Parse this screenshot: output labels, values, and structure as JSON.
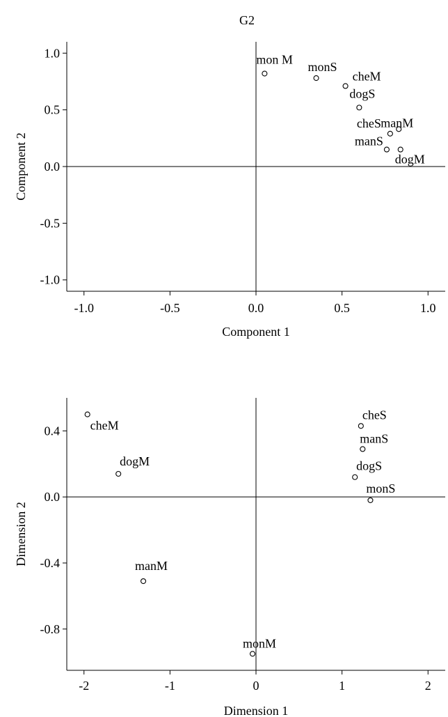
{
  "page_title": "G2",
  "chart_data": [
    {
      "type": "scatter",
      "title": "G2",
      "xlabel": "Component 1",
      "ylabel": "Component 2",
      "xlim": [
        -1.1,
        1.1
      ],
      "ylim": [
        -1.1,
        1.1
      ],
      "xticks": [
        "-1.0",
        "-0.5",
        "0.0",
        "0.5",
        "1.0"
      ],
      "yticks": [
        "-1.0",
        "-0.5",
        "0.0",
        "0.5",
        "1.0"
      ],
      "reference_lines": {
        "x": 0,
        "y": 0
      },
      "grid": false,
      "points": [
        {
          "label": "mon M",
          "x": 0.05,
          "y": 0.82
        },
        {
          "label": "monS",
          "x": 0.35,
          "y": 0.78
        },
        {
          "label": "cheM",
          "x": 0.52,
          "y": 0.71
        },
        {
          "label": "dogS",
          "x": 0.6,
          "y": 0.52
        },
        {
          "label": "cheS",
          "x": 0.78,
          "y": 0.29
        },
        {
          "label": "manM",
          "x": 0.83,
          "y": 0.33
        },
        {
          "label": "manS",
          "x": 0.76,
          "y": 0.15
        },
        {
          "label": "dogM",
          "x": 0.84,
          "y": 0.15
        }
      ]
    },
    {
      "type": "scatter",
      "title": "",
      "xlabel": "Dimension 1",
      "ylabel": "Dimension 2",
      "xlim": [
        -2.2,
        2.2
      ],
      "ylim": [
        -1.05,
        0.6
      ],
      "xticks": [
        "-2",
        "-1",
        "0",
        "1",
        "2"
      ],
      "yticks": [
        "-0.8",
        "-0.4",
        "0.0",
        "0.4"
      ],
      "reference_lines": {
        "x": 0,
        "y": 0
      },
      "grid": false,
      "points": [
        {
          "label": "cheM",
          "x": -1.96,
          "y": 0.5
        },
        {
          "label": "dogM",
          "x": -1.6,
          "y": 0.14
        },
        {
          "label": "manM",
          "x": -1.31,
          "y": -0.51
        },
        {
          "label": "monM",
          "x": -0.04,
          "y": -0.95
        },
        {
          "label": "cheS",
          "x": 1.22,
          "y": 0.43
        },
        {
          "label": "manS",
          "x": 1.24,
          "y": 0.29
        },
        {
          "label": "dogS",
          "x": 1.15,
          "y": 0.12
        },
        {
          "label": "monS",
          "x": 1.33,
          "y": -0.02
        }
      ]
    }
  ]
}
